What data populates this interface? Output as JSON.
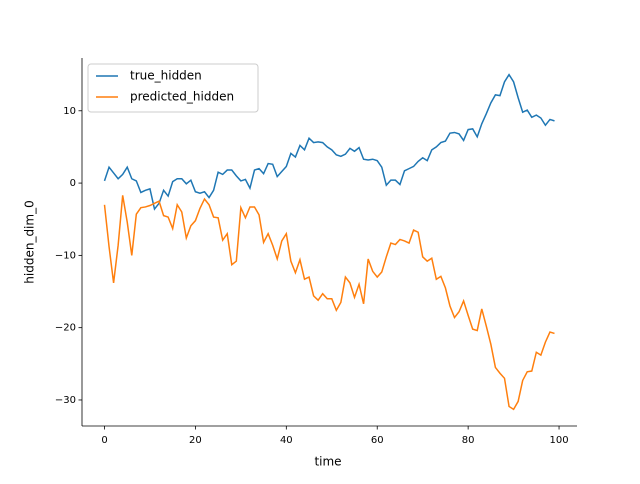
{
  "chart_data": {
    "type": "line",
    "xlabel": "time",
    "ylabel": "hidden_dim_0",
    "x": [
      0,
      1,
      2,
      3,
      4,
      5,
      6,
      7,
      8,
      9,
      10,
      11,
      12,
      13,
      14,
      15,
      16,
      17,
      18,
      19,
      20,
      21,
      22,
      23,
      24,
      25,
      26,
      27,
      28,
      29,
      30,
      31,
      32,
      33,
      34,
      35,
      36,
      37,
      38,
      39,
      40,
      41,
      42,
      43,
      44,
      45,
      46,
      47,
      48,
      49,
      50,
      51,
      52,
      53,
      54,
      55,
      56,
      57,
      58,
      59,
      60,
      61,
      62,
      63,
      64,
      65,
      66,
      67,
      68,
      69,
      70,
      71,
      72,
      73,
      74,
      75,
      76,
      77,
      78,
      79,
      80,
      81,
      82,
      83,
      84,
      85,
      86,
      87,
      88,
      89,
      90,
      91,
      92,
      93,
      94,
      95,
      96,
      97,
      98,
      99
    ],
    "series": [
      {
        "name": "true_hidden",
        "color": "#1f77b4",
        "values": [
          0.3,
          2.2,
          1.4,
          0.6,
          1.2,
          2.2,
          0.6,
          0.3,
          -1.3,
          -1.0,
          -0.8,
          -3.6,
          -2.8,
          -1.0,
          -1.8,
          0.2,
          0.6,
          0.6,
          -0.1,
          0.4,
          -1.2,
          -1.4,
          -1.2,
          -2.0,
          -1.0,
          1.5,
          1.2,
          1.8,
          1.8,
          1.0,
          0.3,
          0.5,
          -0.7,
          1.8,
          2.0,
          1.3,
          2.7,
          2.6,
          0.9,
          1.6,
          2.3,
          4.1,
          3.6,
          5.2,
          4.6,
          6.2,
          5.6,
          5.7,
          5.6,
          5.0,
          4.6,
          3.9,
          3.7,
          4.0,
          4.8,
          4.4,
          4.9,
          3.3,
          3.2,
          3.3,
          3.1,
          2.2,
          -0.3,
          0.4,
          0.4,
          -0.2,
          1.7,
          2.0,
          2.3,
          3.0,
          3.5,
          3.1,
          4.6,
          5.0,
          5.6,
          5.8,
          6.9,
          7.0,
          6.8,
          5.9,
          7.4,
          7.5,
          6.4,
          8.2,
          9.6,
          11.1,
          12.2,
          12.1,
          14.0,
          15.0,
          14.0,
          11.8,
          9.8,
          10.1,
          9.1,
          9.4,
          9.0,
          8.0,
          8.8,
          8.6
        ]
      },
      {
        "name": "predicted_hidden",
        "color": "#ff7f0e",
        "values": [
          -3.0,
          -8.8,
          -13.8,
          -8.6,
          -1.7,
          -5.4,
          -10.0,
          -4.3,
          -3.4,
          -3.3,
          -3.1,
          -2.8,
          -2.5,
          -4.5,
          -4.7,
          -6.3,
          -3.0,
          -4.0,
          -7.6,
          -5.9,
          -5.2,
          -3.5,
          -2.2,
          -3.0,
          -4.7,
          -4.8,
          -7.9,
          -7.0,
          -11.3,
          -10.8,
          -3.4,
          -4.8,
          -3.3,
          -3.3,
          -4.4,
          -8.2,
          -7.0,
          -8.6,
          -10.5,
          -8.0,
          -7.0,
          -10.8,
          -12.4,
          -10.6,
          -13.3,
          -13.0,
          -15.6,
          -16.2,
          -15.3,
          -16.0,
          -16.0,
          -17.6,
          -16.5,
          -13.0,
          -13.8,
          -15.8,
          -14.0,
          -16.7,
          -10.5,
          -12.2,
          -13.0,
          -12.3,
          -10.2,
          -8.3,
          -8.5,
          -7.8,
          -8.0,
          -8.3,
          -6.5,
          -6.8,
          -10.2,
          -10.8,
          -10.4,
          -13.3,
          -12.9,
          -14.5,
          -17.0,
          -18.6,
          -17.8,
          -16.3,
          -18.3,
          -20.2,
          -20.4,
          -17.4,
          -19.8,
          -22.3,
          -25.5,
          -26.3,
          -27.0,
          -30.9,
          -31.3,
          -30.2,
          -27.3,
          -26.1,
          -26.0,
          -23.4,
          -23.8,
          -22.0,
          -20.6,
          -20.8
        ]
      }
    ],
    "xlim": [
      -4.95,
      103.95
    ],
    "ylim": [
      -33.6,
      17.3
    ],
    "xticks": [
      0,
      20,
      40,
      60,
      80,
      100
    ],
    "yticks": [
      {
        "value": -30,
        "label": "−30"
      },
      {
        "value": -20,
        "label": "−20"
      },
      {
        "value": -10,
        "label": "−10"
      },
      0,
      10
    ],
    "legend": "upper left"
  }
}
